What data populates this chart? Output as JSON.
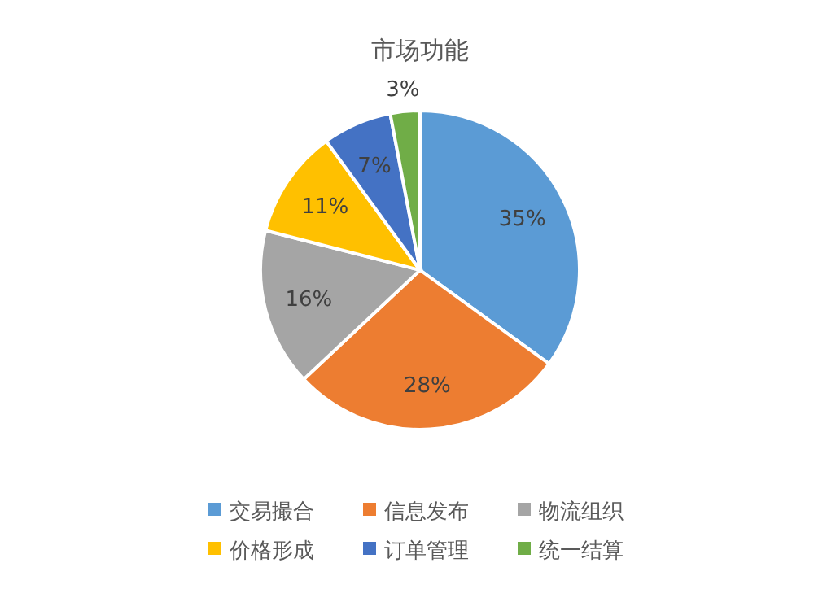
{
  "chart_data": {
    "type": "pie",
    "title": "市场功能",
    "categories": [
      "交易撮合",
      "信息发布",
      "物流组织",
      "价格形成",
      "订单管理",
      "统一结算"
    ],
    "values": [
      35,
      28,
      16,
      11,
      7,
      3
    ],
    "colors": [
      "#5b9bd5",
      "#ed7d31",
      "#a5a5a5",
      "#ffc000",
      "#4472c4",
      "#70ad47"
    ],
    "value_labels": [
      "35%",
      "28%",
      "16%",
      "11%",
      "7%",
      "3%"
    ],
    "legend": "bottom"
  }
}
